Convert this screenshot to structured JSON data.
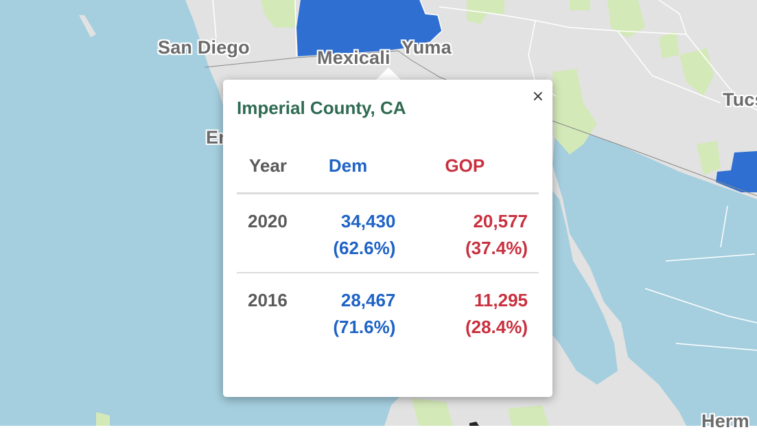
{
  "map": {
    "colors": {
      "water": "#a5cfdf",
      "land": "#e2e2e2",
      "park": "#d4e9b8",
      "dem_county": "#2f6fd1",
      "border": "#ffffff",
      "intl_border": "#888888"
    },
    "cities": [
      {
        "id": "san-diego",
        "name": "San Diego"
      },
      {
        "id": "mexicali",
        "name": "Mexicali"
      },
      {
        "id": "yuma",
        "name": "Yuma"
      },
      {
        "id": "tucson",
        "name": "Tucs"
      },
      {
        "id": "ensenada",
        "name": "En"
      },
      {
        "id": "hermosillo",
        "name": "Herm"
      }
    ]
  },
  "popup": {
    "title": "Imperial County, CA",
    "close_label": "×",
    "headers": {
      "year": "Year",
      "dem": "Dem",
      "gop": "GOP"
    },
    "rows": [
      {
        "year": "2020",
        "dem_votes": "34,430",
        "dem_pct": "(62.6%)",
        "gop_votes": "20,577",
        "gop_pct": "(37.4%)"
      },
      {
        "year": "2016",
        "dem_votes": "28,467",
        "dem_pct": "(71.6%)",
        "gop_votes": "11,295",
        "gop_pct": "(28.4%)"
      }
    ]
  }
}
